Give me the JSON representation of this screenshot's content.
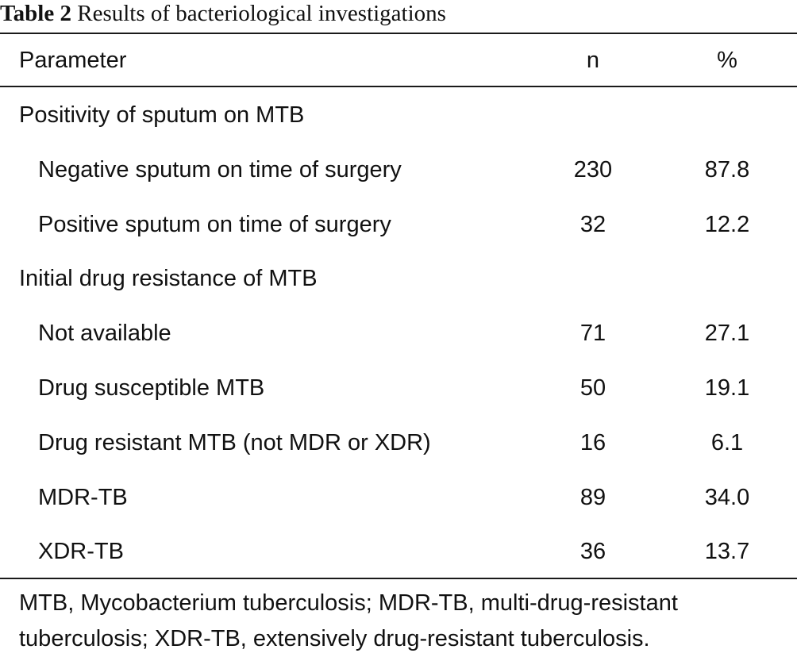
{
  "caption": {
    "label": "Table 2",
    "title": "Results of bacteriological investigations"
  },
  "header": {
    "parameter": "Parameter",
    "n": "n",
    "percent": "%"
  },
  "rows": [
    {
      "parameter": "Positivity of sputum on MTB",
      "n": "",
      "percent": "",
      "group": true
    },
    {
      "parameter": "Negative sputum on time of surgery",
      "n": "230",
      "percent": "87.8",
      "group": false
    },
    {
      "parameter": "Positive sputum on time of surgery",
      "n": "32",
      "percent": "12.2",
      "group": false
    },
    {
      "parameter": "Initial drug resistance of MTB",
      "n": "",
      "percent": "",
      "group": true
    },
    {
      "parameter": "Not available",
      "n": "71",
      "percent": "27.1",
      "group": false
    },
    {
      "parameter": "Drug susceptible MTB",
      "n": "50",
      "percent": "19.1",
      "group": false
    },
    {
      "parameter": "Drug resistant MTB (not MDR or XDR)",
      "n": "16",
      "percent": "6.1",
      "group": false
    },
    {
      "parameter": "MDR-TB",
      "n": "89",
      "percent": "34.0",
      "group": false
    },
    {
      "parameter": "XDR-TB",
      "n": "36",
      "percent": "13.7",
      "group": false
    }
  ],
  "footnote": "MTB, Mycobacterium tuberculosis; MDR-TB, multi-drug-resistant tuberculosis; XDR-TB, extensively drug-resistant tuberculosis."
}
